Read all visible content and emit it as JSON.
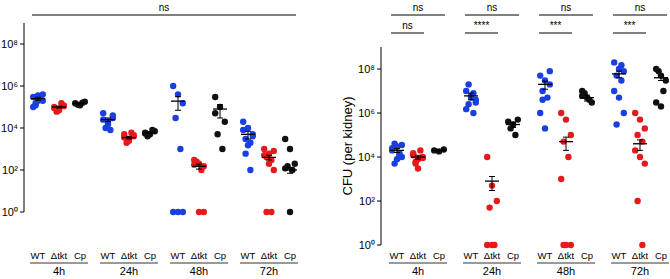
{
  "chart_data": [
    {
      "type": "scatter",
      "log": "y",
      "categories": [
        "WT",
        "Δtkt",
        "Cp",
        "WT",
        "Δtkt",
        "Cp",
        "WT",
        "Δtkt",
        "Cp",
        "WT",
        "Δtkt",
        "Cp"
      ],
      "groups": [
        "4h",
        "24h",
        "48h",
        "72h"
      ],
      "colors": [
        "#1a3fe0",
        "#e8191b",
        "#111111",
        "#1a3fe0",
        "#e8191b",
        "#111111",
        "#1a3fe0",
        "#e8191b",
        "#111111",
        "#1a3fe0",
        "#e8191b",
        "#111111"
      ],
      "values": [
        [
          300000,
          200000,
          400000,
          150000,
          250000,
          100000,
          350000,
          200000,
          120000,
          280000
        ],
        [
          100000,
          80000,
          120000,
          60000,
          150000,
          90000,
          70000,
          110000
        ],
        [
          150000,
          120000,
          180000,
          130000,
          160000
        ],
        [
          50000,
          20000,
          30000,
          10000,
          8000,
          25000,
          15000,
          40000
        ],
        [
          5000,
          3000,
          4000,
          2000,
          6000,
          3500,
          2500,
          4500
        ],
        [
          6000,
          5000,
          7000,
          4000,
          8000,
          5500
        ],
        [
          1000000,
          400000,
          150000,
          30000,
          1000,
          1,
          1,
          1
        ],
        [
          300,
          200,
          150,
          250,
          100,
          180,
          1,
          1
        ],
        [
          300000,
          100000,
          20000,
          5000,
          1000,
          50000
        ],
        [
          20000,
          10000,
          5000,
          3000,
          2000,
          8000,
          1500,
          4000,
          600,
          100
        ],
        [
          1000,
          600,
          800,
          400,
          300,
          500,
          200,
          100,
          1,
          1
        ],
        [
          3000,
          1000,
          200,
          150,
          100,
          120,
          1
        ]
      ],
      "means": [
        250000,
        100000,
        150000,
        25000,
        3500,
        6000,
        190000,
        150,
        80000,
        5000,
        400,
        100
      ],
      "errors": [
        40000,
        10000,
        10000,
        5000,
        500,
        600,
        120000,
        40,
        50000,
        2000,
        100,
        30
      ],
      "comparisons": [
        {
          "from": 0,
          "to": 11,
          "label": "ns"
        }
      ],
      "ylim": [
        1,
        1000000000.0
      ],
      "yticks": [
        {
          "value": 1,
          "label": "10⁰"
        },
        {
          "value": 100,
          "label": "10²"
        },
        {
          "value": 10000,
          "label": "10⁴"
        },
        {
          "value": 1000000,
          "label": "10⁶"
        },
        {
          "value": 100000000,
          "label": "10⁸"
        }
      ]
    },
    {
      "type": "scatter",
      "log": "y",
      "y_label": "CFU (per kidney)",
      "categories": [
        "WT",
        "Δtkt",
        "Cp",
        "WT",
        "Δtkt",
        "Cp",
        "WT",
        "Δtkt",
        "Cp",
        "WT",
        "Δtkt",
        "Cp"
      ],
      "groups": [
        "4h",
        "24h",
        "48h",
        "72h"
      ],
      "colors": [
        "#1a3fe0",
        "#e8191b",
        "#111111",
        "#1a3fe0",
        "#e8191b",
        "#111111",
        "#1a3fe0",
        "#e8191b",
        "#111111",
        "#1a3fe0",
        "#e8191b",
        "#111111"
      ],
      "values": [
        [
          20000,
          30000,
          10000,
          40000,
          15000,
          25000,
          8000,
          35000,
          5000,
          12000
        ],
        [
          15000,
          8000,
          10000,
          5000,
          20000,
          12000,
          3000,
          9000,
          6000
        ],
        [
          20000,
          18000,
          22000
        ],
        [
          10000000,
          5000000,
          3000000,
          20000000,
          8000000,
          1500000,
          6000000,
          4000000,
          2500000,
          1000000
        ],
        [
          10000,
          500,
          100,
          50,
          1,
          1,
          1
        ],
        [
          400000,
          300000,
          500000,
          200000,
          100000
        ],
        [
          50000000,
          30000000,
          20000000,
          10000000,
          5000000,
          1000000,
          200000,
          80000000,
          4000000
        ],
        [
          1000000,
          500000,
          100000,
          50000,
          10000,
          1000,
          1,
          1,
          1
        ],
        [
          10000000,
          5000000,
          3000000,
          8000000,
          4000000,
          6000000
        ],
        [
          200000000,
          100000000,
          80000000,
          50000000,
          30000000,
          10000000,
          5000000,
          1000000,
          300000,
          150000000
        ],
        [
          1000000,
          500000,
          200000,
          100000,
          50000,
          20000,
          10000,
          5000,
          100,
          1
        ],
        [
          100000000,
          50000000,
          30000000,
          80000000,
          10000000,
          3000000,
          2000000
        ]
      ],
      "means": [
        20000,
        10000,
        20000,
        6000000,
        800,
        300000,
        20000000,
        50000,
        5000000,
        60000000,
        40000,
        40000000
      ],
      "errors": [
        4000,
        2000,
        1000,
        2000000,
        500,
        80000,
        8000000,
        30000,
        1500000,
        20000000,
        20000,
        10000000
      ],
      "comparisons": [
        {
          "from": 0,
          "to": 2,
          "label": "ns"
        },
        {
          "from": 0,
          "to": 1,
          "label": "ns"
        },
        {
          "from": 3,
          "to": 5,
          "label": "ns"
        },
        {
          "from": 3,
          "to": 4,
          "label": "****"
        },
        {
          "from": 6,
          "to": 8,
          "label": "ns"
        },
        {
          "from": 6,
          "to": 7,
          "label": "***"
        },
        {
          "from": 9,
          "to": 11,
          "label": "ns"
        },
        {
          "from": 9,
          "to": 10,
          "label": "***"
        }
      ],
      "ylim": [
        1,
        1000000000.0
      ],
      "yticks": [
        {
          "value": 1,
          "label": "10⁰"
        },
        {
          "value": 100,
          "label": "10²"
        },
        {
          "value": 10000,
          "label": "10⁴"
        },
        {
          "value": 1000000,
          "label": "10⁶"
        },
        {
          "value": 100000000,
          "label": "10⁸"
        }
      ]
    }
  ]
}
